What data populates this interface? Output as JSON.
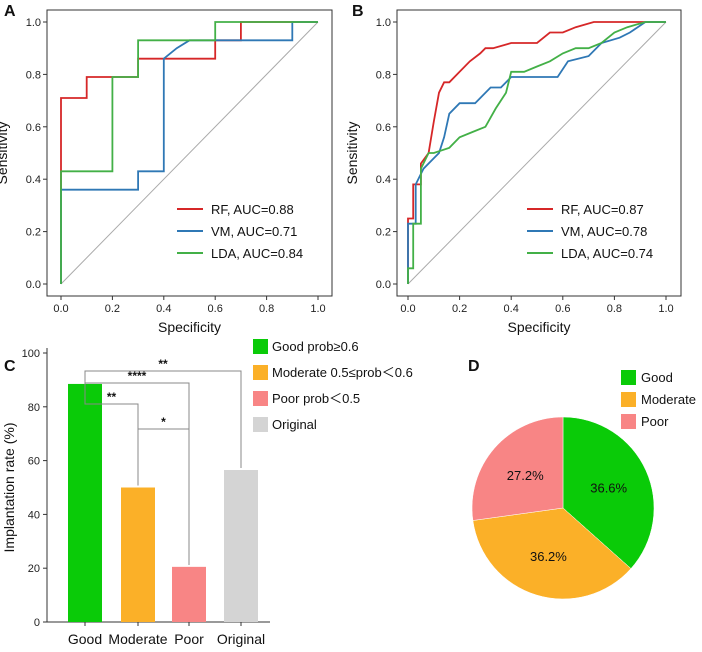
{
  "chart_data": [
    {
      "panel": "A",
      "type": "line",
      "xlabel": "Specificity",
      "ylabel": "Sensitivity",
      "xlim": [
        0,
        1
      ],
      "ylim": [
        0,
        1
      ],
      "xticks": [
        "0.0",
        "0.2",
        "0.4",
        "0.6",
        "0.8",
        "1.0"
      ],
      "yticks": [
        "0.0",
        "0.2",
        "0.4",
        "0.6",
        "0.8",
        "1.0"
      ],
      "legend_position": "bottom-right",
      "series": [
        {
          "name": "RF, AUC=0.88",
          "color": "#d62728",
          "x": [
            0,
            0,
            0,
            0.1,
            0.1,
            0.2,
            0.3,
            0.3,
            0.4,
            0.6,
            0.6,
            0.7,
            0.7,
            1
          ],
          "y": [
            0,
            0.43,
            0.71,
            0.71,
            0.79,
            0.79,
            0.79,
            0.86,
            0.86,
            0.86,
            0.93,
            0.93,
            1.0,
            1.0
          ]
        },
        {
          "name": "VM, AUC=0.71",
          "color": "#2f78b5",
          "x": [
            0,
            0,
            0.3,
            0.3,
            0.4,
            0.4,
            0.45,
            0.5,
            0.9,
            0.9,
            1
          ],
          "y": [
            0,
            0.36,
            0.36,
            0.43,
            0.43,
            0.86,
            0.9,
            0.93,
            0.93,
            1.0,
            1.0
          ]
        },
        {
          "name": "LDA, AUC=0.84",
          "color": "#43b047",
          "x": [
            0,
            0,
            0.2,
            0.2,
            0.3,
            0.3,
            0.6,
            0.6,
            1
          ],
          "y": [
            0,
            0.43,
            0.43,
            0.79,
            0.79,
            0.93,
            0.93,
            1.0,
            1.0
          ]
        }
      ]
    },
    {
      "panel": "B",
      "type": "line",
      "xlabel": "Specificity",
      "ylabel": "Sensitivity",
      "xlim": [
        0,
        1
      ],
      "ylim": [
        0,
        1
      ],
      "xticks": [
        "0.0",
        "0.2",
        "0.4",
        "0.6",
        "0.8",
        "1.0"
      ],
      "yticks": [
        "0.0",
        "0.2",
        "0.4",
        "0.6",
        "0.8",
        "1.0"
      ],
      "legend_position": "bottom-right",
      "series": [
        {
          "name": "RF, AUC=0.87",
          "color": "#d62728",
          "x": [
            0,
            0,
            0.02,
            0.02,
            0.05,
            0.05,
            0.08,
            0.1,
            0.12,
            0.14,
            0.16,
            0.2,
            0.24,
            0.28,
            0.3,
            0.33,
            0.4,
            0.45,
            0.5,
            0.55,
            0.6,
            0.65,
            0.72,
            0.8,
            0.85,
            1
          ],
          "y": [
            0,
            0.25,
            0.25,
            0.38,
            0.38,
            0.46,
            0.5,
            0.62,
            0.73,
            0.77,
            0.77,
            0.81,
            0.85,
            0.88,
            0.9,
            0.9,
            0.92,
            0.92,
            0.92,
            0.96,
            0.96,
            0.98,
            1.0,
            1.0,
            1.0,
            1.0
          ]
        },
        {
          "name": "VM, AUC=0.78",
          "color": "#2f78b5",
          "x": [
            0,
            0,
            0.03,
            0.03,
            0.06,
            0.1,
            0.12,
            0.14,
            0.16,
            0.2,
            0.26,
            0.32,
            0.36,
            0.4,
            0.45,
            0.5,
            0.58,
            0.62,
            0.7,
            0.75,
            0.82,
            0.86,
            0.92,
            0.95,
            1
          ],
          "y": [
            0,
            0.23,
            0.23,
            0.38,
            0.44,
            0.48,
            0.5,
            0.56,
            0.65,
            0.69,
            0.69,
            0.75,
            0.75,
            0.79,
            0.79,
            0.79,
            0.79,
            0.85,
            0.87,
            0.92,
            0.94,
            0.96,
            1.0,
            1.0,
            1.0
          ]
        },
        {
          "name": "LDA, AUC=0.74",
          "color": "#43b047",
          "x": [
            0,
            0,
            0.02,
            0.02,
            0.05,
            0.05,
            0.08,
            0.1,
            0.16,
            0.2,
            0.25,
            0.3,
            0.34,
            0.38,
            0.4,
            0.45,
            0.5,
            0.55,
            0.6,
            0.65,
            0.7,
            0.75,
            0.8,
            0.85,
            0.92,
            1
          ],
          "y": [
            0,
            0.06,
            0.06,
            0.23,
            0.23,
            0.44,
            0.5,
            0.5,
            0.52,
            0.56,
            0.58,
            0.6,
            0.67,
            0.73,
            0.81,
            0.81,
            0.83,
            0.85,
            0.88,
            0.9,
            0.9,
            0.92,
            0.96,
            0.98,
            1.0,
            1.0
          ]
        }
      ]
    },
    {
      "panel": "C",
      "type": "bar",
      "ylabel": "Implantation rate (%)",
      "ylim": [
        0,
        100
      ],
      "yticks": [
        "0",
        "20",
        "40",
        "60",
        "80",
        "100"
      ],
      "categories": [
        "Good",
        "Moderate",
        "Poor",
        "Original"
      ],
      "values": [
        88.5,
        50,
        20.5,
        56.5
      ],
      "colors": [
        "#0acb08",
        "#fbb028",
        "#f88585",
        "#d4d4d4"
      ],
      "legend": [
        "Good prob≥0.6",
        "Moderate 0.5≤prob＜0.6",
        "Poor prob＜0.5",
        "Original"
      ],
      "significance": [
        {
          "from": 0,
          "to": 1,
          "label": "**"
        },
        {
          "from": 1,
          "to": 2,
          "label": "*"
        },
        {
          "from": 0,
          "to": 2,
          "label": "****"
        },
        {
          "from": 0,
          "to": 3,
          "label": "**"
        }
      ]
    },
    {
      "panel": "D",
      "type": "pie",
      "labels": [
        "Good",
        "Moderate",
        "Poor"
      ],
      "values": [
        36.6,
        36.2,
        27.2
      ],
      "value_labels": [
        "36.6%",
        "36.2%",
        "27.2%"
      ],
      "colors": [
        "#0acb08",
        "#fbb028",
        "#f88585"
      ]
    }
  ]
}
